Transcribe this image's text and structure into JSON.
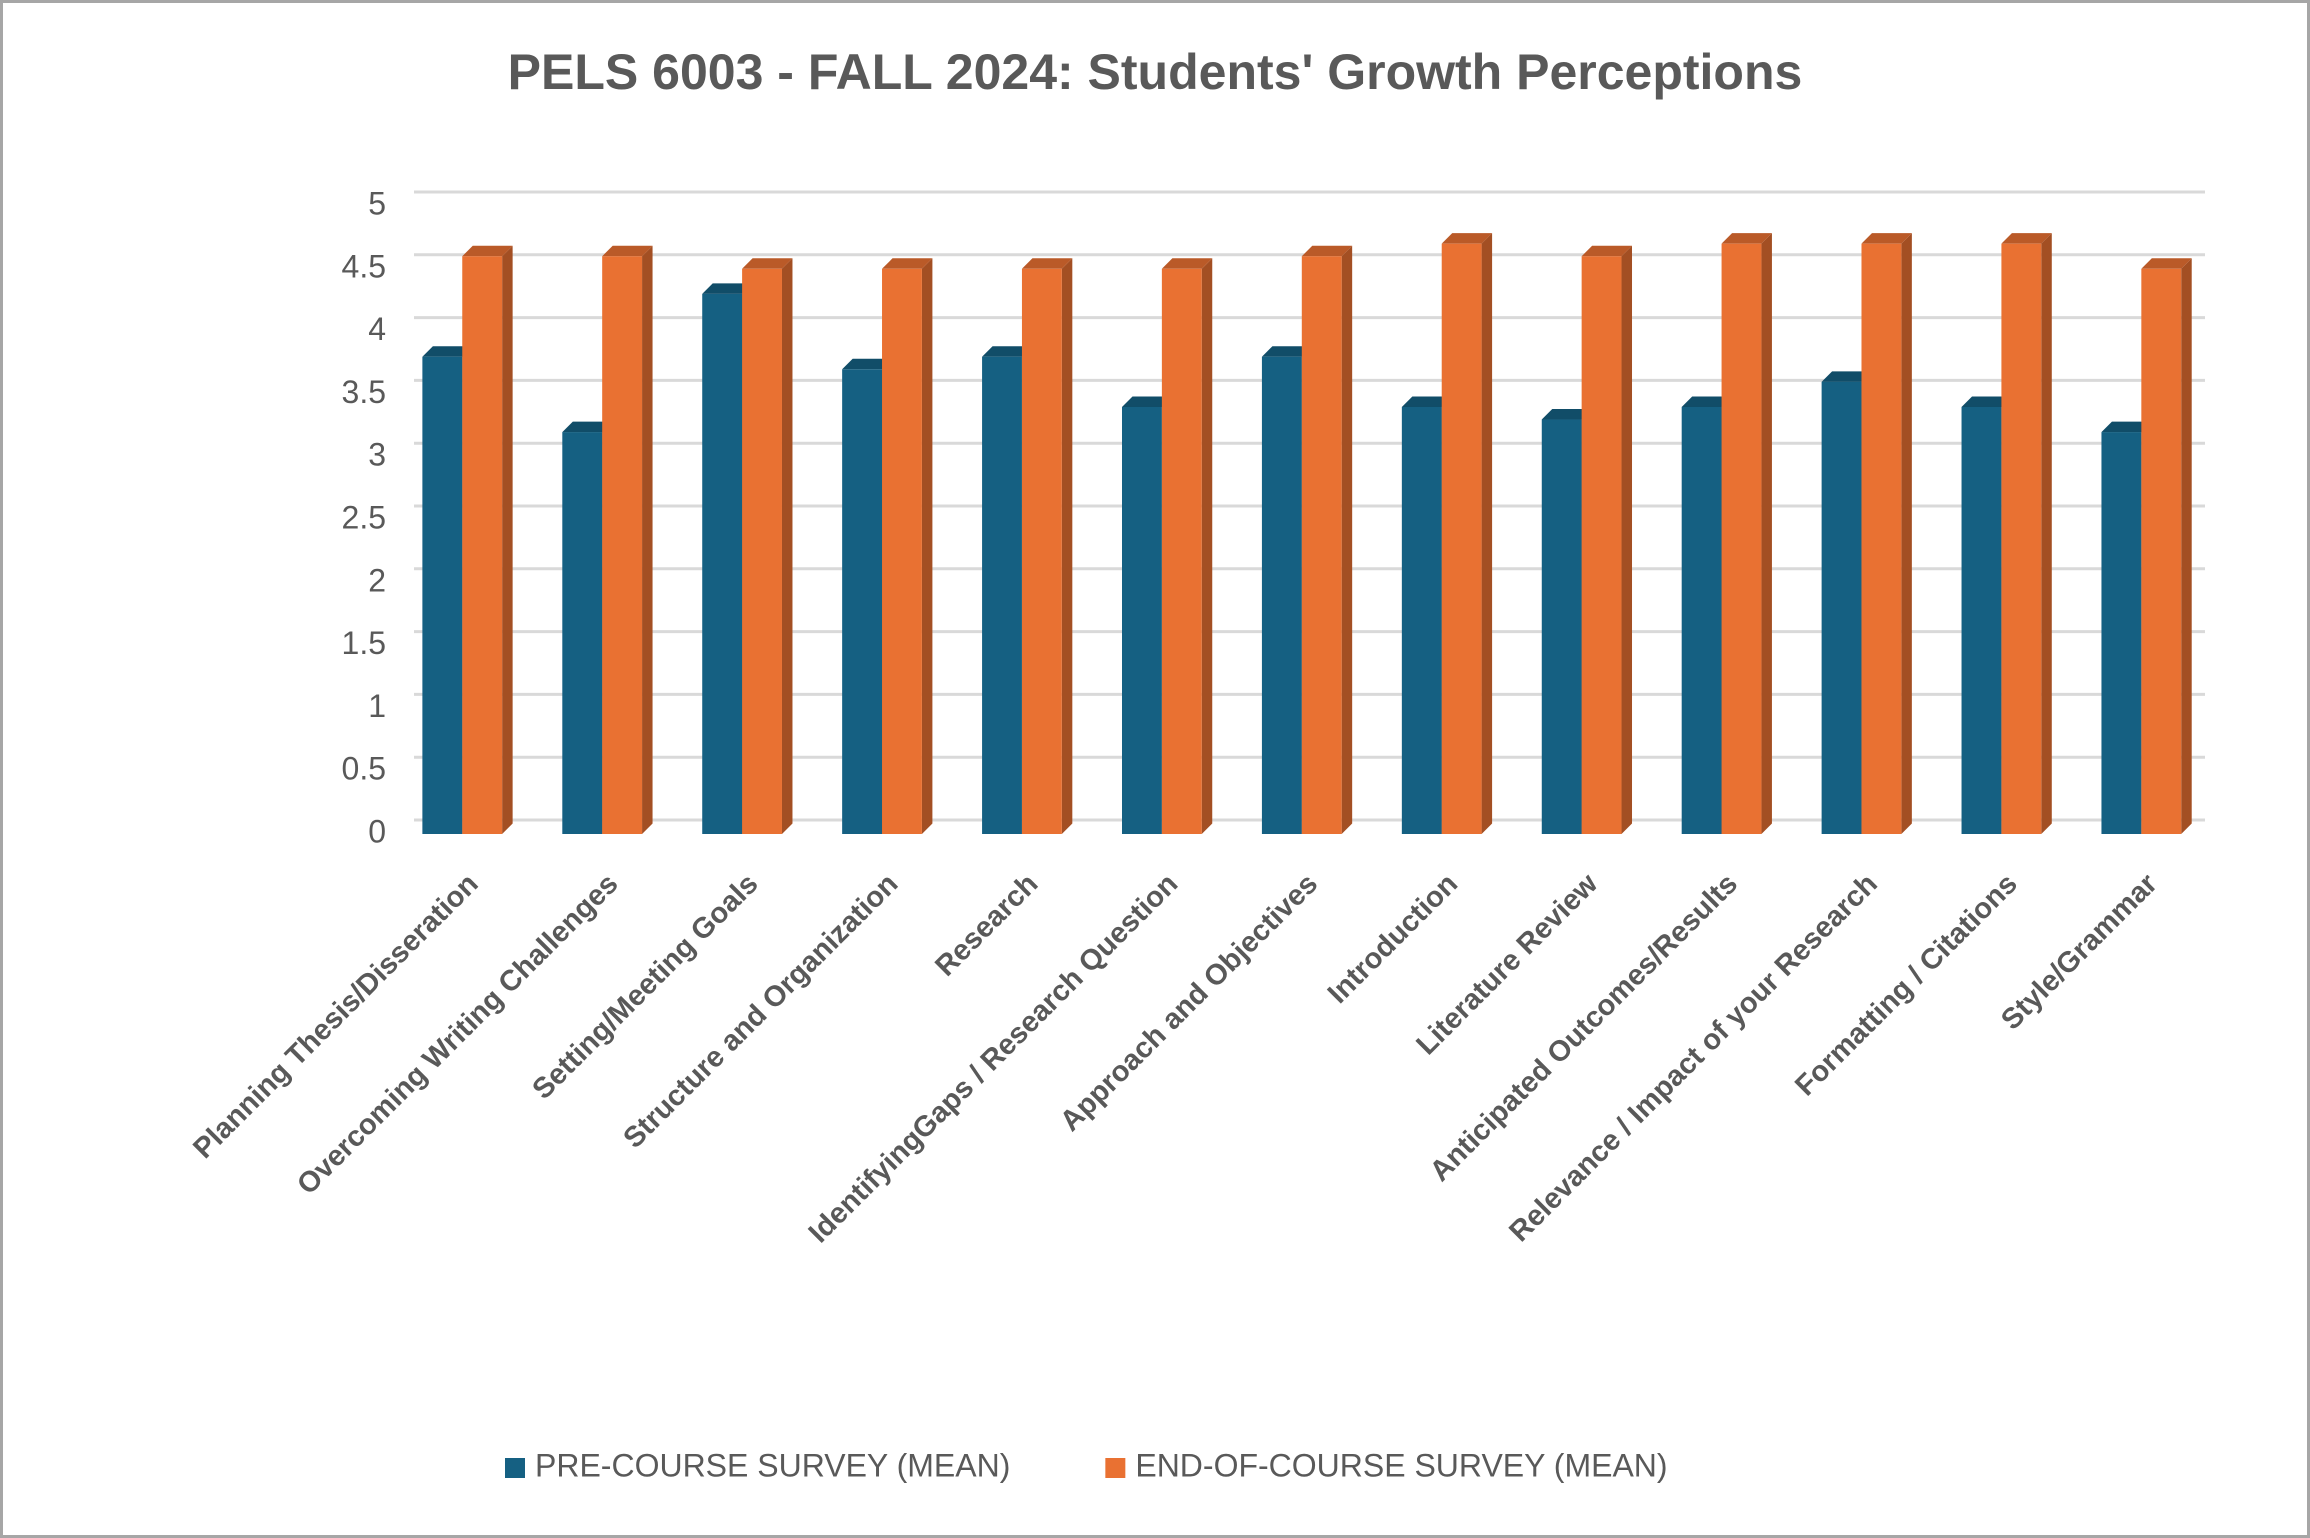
{
  "chart_data": {
    "type": "bar",
    "title": "PELS 6003 - FALL 2024: Students' Growth Perceptions",
    "categories": [
      "Planning Thesis/Disseration",
      "Overcoming Writing Challenges",
      "Setting/Meeting Goals",
      "Structure and Organization",
      "Research",
      "IdentifyingGaps / Research Question",
      "Approach and Objectives",
      "Introduction",
      "Literature Review",
      "Anticipated Outcomes/Results",
      "Relevance / Impact of your Research",
      "Formatting / Citations",
      "Style/Grammar"
    ],
    "series": [
      {
        "name": "PRE-COURSE SURVEY (MEAN)",
        "color": "#156082",
        "values": [
          3.8,
          3.2,
          4.3,
          3.7,
          3.8,
          3.4,
          3.8,
          3.4,
          3.3,
          3.4,
          3.6,
          3.4,
          3.2
        ]
      },
      {
        "name": "END-OF-COURSE SURVEY (MEAN)",
        "color": "#e97132",
        "values": [
          4.6,
          4.6,
          4.5,
          4.5,
          4.5,
          4.5,
          4.6,
          4.7,
          4.6,
          4.7,
          4.7,
          4.7,
          4.5
        ]
      }
    ],
    "ylim": [
      0,
      5
    ],
    "yticks": [
      0,
      0.5,
      1,
      1.5,
      2,
      2.5,
      3,
      3.5,
      4,
      4.5,
      5
    ],
    "grid": true,
    "legend": "bottom"
  }
}
